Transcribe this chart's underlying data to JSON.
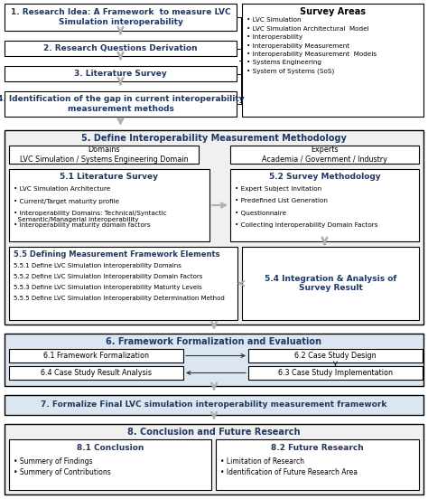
{
  "bg_color": "#ffffff",
  "blue_text": "#1f3864",
  "step1": "1. Research Idea: A Framework  to measure LVC\nSimulation interoperability",
  "step2": "2. Research Questions Derivation",
  "step3": "3. Literature Survey",
  "step4": "4. Identification of the gap in current interoperability\nmeasurement methods",
  "survey_title": "Survey Areas",
  "survey_items": [
    "LVC Simulation",
    "LVC Simulation Architectural  Model",
    "Interoperability",
    "Interoperability Measurement",
    "Interoperability Measurement  Models",
    "Systems Engineering",
    "System of Systems (SoS)"
  ],
  "sec5_title": "5. Define Interoperability Measurement Methodology",
  "domains_label": "Domains\nLVC Simulation / Systems Engineering Domain",
  "experts_label": "Experts\nAcademia / Government / Industry",
  "sec51_title": "5.1 Literature Survey",
  "sec51_items": [
    "LVC Simulation Architecture",
    "Current/Target maturity profile",
    "Interoperability Domains: Technical/Syntactic\n  Semantic/Managerial interoperability",
    "Interoperability maturity domain factors"
  ],
  "sec52_title": "5.2 Survey Methodology",
  "sec52_items": [
    "Expert Subject Invitation",
    "Predefined List Generation",
    "Questionnaire",
    "Collecting Interoperability Domain Factors"
  ],
  "sec55_title": "5.5 Defining Measurement Framework Elements",
  "sec55_items": [
    "5.5.1 Define LVC Simulation Interoperability Domains",
    "5.5.2 Define LVC Simulation Interoperability Domain Factors",
    "5.5.3 Define LVC Simulation Interoperability Maturity Levels",
    "5.5.5 Define LVC Simulation Interoperability Determination Method"
  ],
  "sec54_title": "5.4 Integration & Analysis of\nSurvey Result",
  "sec6_title": "6. Framework Formalization and Evaluation",
  "sec61": "6.1 Framework Formalization",
  "sec62": "6.2 Case Study Design",
  "sec64": "6.4 Case Study Result Analysis",
  "sec63": "6.3 Case Study Implementation",
  "sec7_title": "7. Formalize Final LVC simulation interoperability measurement framework",
  "sec8_title": "8. Conclusion and Future Research",
  "sec81_title": "8.1 Conclusion",
  "sec81_items": [
    "Summery of Findings",
    "Summery of Contributions"
  ],
  "sec82_title": "8.2 Future Research",
  "sec82_items": [
    "Limitation of Research",
    "Identification of Future Research Area"
  ]
}
